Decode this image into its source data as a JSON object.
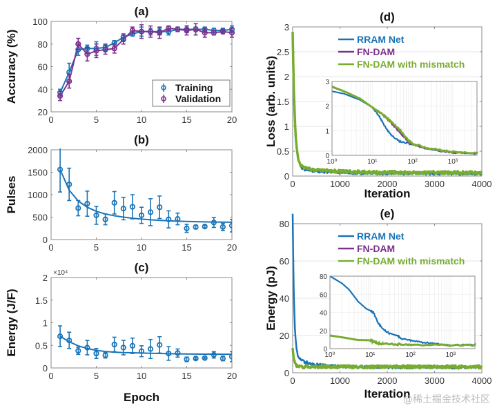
{
  "colors": {
    "blue": "#1a74b8",
    "purple": "#7e2f8e",
    "green": "#77ac30",
    "axis": "#8a8a8a",
    "grid": "#e6e6e6"
  },
  "watermark": "@稀土掘金技术社区",
  "chart_data": [
    {
      "id": "a",
      "type": "line",
      "title": "(a)",
      "xlabel": "",
      "ylabel": "Accuracy (%)",
      "xlim": [
        0,
        20
      ],
      "ylim": [
        20,
        100
      ],
      "xticks": [
        0,
        5,
        10,
        15,
        20
      ],
      "yticks": [
        20,
        40,
        60,
        80,
        100
      ],
      "legend_position": "bottom-right",
      "x": [
        1,
        2,
        3,
        4,
        5,
        6,
        7,
        8,
        9,
        10,
        11,
        12,
        13,
        14,
        15,
        16,
        17,
        18,
        19,
        20
      ],
      "series": [
        {
          "name": "Training",
          "color": "purple_blue",
          "values": [
            37,
            55,
            75,
            76,
            76,
            77,
            81,
            86,
            89,
            91,
            91,
            91,
            91,
            93,
            93,
            93,
            93,
            92,
            92,
            93
          ],
          "err": [
            3,
            8,
            5,
            3,
            6,
            3,
            2,
            3,
            2,
            4,
            3,
            3,
            3,
            2,
            3,
            2,
            2,
            2,
            2,
            3
          ]
        },
        {
          "name": "Validation",
          "values": [
            34,
            47,
            80,
            71,
            74,
            75,
            76,
            84,
            92,
            91,
            91,
            90,
            94,
            93,
            92,
            93,
            90,
            90,
            91,
            90
          ],
          "err": [
            4,
            6,
            5,
            6,
            6,
            4,
            4,
            4,
            3,
            6,
            5,
            5,
            2,
            2,
            4,
            5,
            4,
            2,
            2,
            4
          ]
        }
      ]
    },
    {
      "id": "b",
      "type": "scatter",
      "title": "(b)",
      "xlabel": "",
      "ylabel": "Pulses",
      "xlim": [
        0,
        20
      ],
      "ylim": [
        0,
        2000
      ],
      "xticks": [
        0,
        5,
        10,
        15,
        20
      ],
      "yticks": [
        0,
        500,
        1000,
        1500,
        2000
      ],
      "x": [
        1,
        2,
        3,
        4,
        5,
        6,
        7,
        8,
        9,
        10,
        11,
        12,
        13,
        14,
        15,
        16,
        17,
        18,
        19,
        20
      ],
      "values": [
        1560,
        1230,
        700,
        800,
        540,
        450,
        820,
        690,
        730,
        540,
        610,
        720,
        450,
        460,
        250,
        280,
        290,
        380,
        280,
        310
      ],
      "err": [
        500,
        360,
        170,
        280,
        200,
        120,
        250,
        250,
        270,
        180,
        300,
        250,
        190,
        130,
        90,
        40,
        30,
        110,
        80,
        140
      ],
      "fit": [
        1560,
        1100,
        860,
        720,
        630,
        570,
        530,
        500,
        475,
        455,
        440,
        428,
        418,
        410,
        403,
        398,
        394,
        390,
        388,
        386
      ]
    },
    {
      "id": "c",
      "type": "scatter",
      "title": "(c)",
      "xlabel": "Epoch",
      "ylabel": "Energy (J/F)",
      "exponent_label": "×10⁴",
      "xlim": [
        0,
        20
      ],
      "ylim": [
        0,
        2
      ],
      "xticks": [
        0,
        5,
        10,
        15,
        20
      ],
      "yticks": [
        0,
        0.5,
        1,
        1.5,
        2
      ],
      "ytick_labels": [
        "0",
        "0.5",
        "1",
        "1.5",
        "2"
      ],
      "x": [
        1,
        2,
        3,
        4,
        5,
        6,
        7,
        8,
        9,
        10,
        11,
        12,
        13,
        14,
        15,
        16,
        17,
        18,
        19,
        20
      ],
      "values": [
        0.7,
        0.61,
        0.38,
        0.45,
        0.32,
        0.28,
        0.52,
        0.45,
        0.49,
        0.37,
        0.42,
        0.51,
        0.32,
        0.33,
        0.19,
        0.21,
        0.22,
        0.29,
        0.21,
        0.25
      ],
      "err": [
        0.23,
        0.18,
        0.08,
        0.16,
        0.11,
        0.06,
        0.16,
        0.16,
        0.17,
        0.12,
        0.21,
        0.18,
        0.15,
        0.09,
        0.05,
        0.02,
        0.02,
        0.07,
        0.05,
        0.11
      ],
      "fit": [
        0.7,
        0.58,
        0.49,
        0.43,
        0.39,
        0.365,
        0.35,
        0.34,
        0.335,
        0.33,
        0.325,
        0.32,
        0.315,
        0.312,
        0.31,
        0.308,
        0.306,
        0.305,
        0.304,
        0.303
      ]
    },
    {
      "id": "d",
      "type": "line",
      "title": "(d)",
      "xlabel": "Iteration",
      "ylabel": "Loss (arb. units)",
      "xlim": [
        0,
        4000
      ],
      "ylim": [
        0,
        3
      ],
      "xticks": [
        0,
        1000,
        2000,
        3000,
        4000
      ],
      "yticks": [
        0,
        0.5,
        1,
        1.5,
        2,
        2.5,
        3
      ],
      "legend_position": "top-right",
      "series": [
        {
          "name": "RRAM Net",
          "start": 2.6,
          "floor": 0.05
        },
        {
          "name": "FN-DAM",
          "start": 2.8,
          "floor": 0.06
        },
        {
          "name": "FN-DAM with mismatch",
          "start": 2.8,
          "floor": 0.07
        }
      ],
      "inset": {
        "xscale": "log",
        "xlim": [
          1,
          4000
        ],
        "ylim": [
          0,
          3
        ],
        "yticks": [
          0,
          1,
          2,
          3
        ],
        "xtick_labels": [
          "10⁰",
          "10¹",
          "10²",
          "10³"
        ],
        "series": [
          {
            "name": "RRAM Net",
            "x": [
              1,
              2,
              5,
              10,
              15,
              20,
              30,
              50,
              80,
              100,
              200,
              500,
              1000,
              4000
            ],
            "values": [
              2.6,
              2.5,
              2.25,
              1.95,
              1.6,
              1.2,
              0.8,
              0.55,
              0.5,
              0.45,
              0.3,
              0.18,
              0.12,
              0.08
            ]
          },
          {
            "name": "FN-DAM",
            "x": [
              1,
              2,
              5,
              10,
              20,
              30,
              50,
              80,
              100,
              200,
              500,
              1000,
              4000
            ],
            "values": [
              2.8,
              2.6,
              2.3,
              1.95,
              1.6,
              1.3,
              0.9,
              0.55,
              0.45,
              0.3,
              0.18,
              0.12,
              0.08
            ]
          },
          {
            "name": "FN-DAM with mismatch",
            "x": [
              1,
              2,
              5,
              10,
              20,
              30,
              50,
              80,
              100,
              200,
              500,
              1000,
              4000
            ],
            "values": [
              2.78,
              2.6,
              2.3,
              1.95,
              1.6,
              1.35,
              1.0,
              0.6,
              0.48,
              0.32,
              0.2,
              0.13,
              0.09
            ]
          }
        ]
      }
    },
    {
      "id": "e",
      "type": "line",
      "title": "(e)",
      "xlabel": "Iteration",
      "ylabel": "Energy (pJ)",
      "xlim": [
        0,
        4000
      ],
      "ylim": [
        0,
        80
      ],
      "xticks": [
        0,
        1000,
        2000,
        3000,
        4000
      ],
      "yticks": [
        0,
        20,
        40,
        60,
        80
      ],
      "legend_position": "top-right",
      "series": [
        {
          "name": "RRAM Net",
          "start": 80,
          "floor": 3
        },
        {
          "name": "FN-DAM",
          "start": 14,
          "floor": 3
        },
        {
          "name": "FN-DAM with mismatch",
          "start": 14,
          "floor": 3.2
        }
      ],
      "inset": {
        "xscale": "log",
        "xlim": [
          1,
          4000
        ],
        "ylim": [
          0,
          80
        ],
        "yticks": [
          0,
          20,
          40,
          60,
          80
        ],
        "xtick_labels": [
          "10⁰",
          "10¹",
          "10²",
          "10³"
        ],
        "series": [
          {
            "name": "RRAM Net",
            "x": [
              1,
              2,
              3,
              5,
              8,
              10,
              12,
              15,
              20,
              30,
              50,
              60,
              100,
              200,
              500,
              1000,
              4000
            ],
            "values": [
              80,
              72,
              65,
              52,
              44,
              42,
              40,
              30,
              22,
              17,
              14,
              11,
              9,
              7,
              5,
              4,
              4
            ]
          },
          {
            "name": "FN-DAM",
            "x": [
              1,
              2,
              5,
              10,
              12,
              15,
              20,
              50,
              100,
              1000,
              4000
            ],
            "values": [
              14,
              12,
              9,
              9,
              8,
              6,
              5,
              4.5,
              4,
              3.5,
              3.5
            ]
          },
          {
            "name": "FN-DAM with mismatch",
            "x": [
              1,
              2,
              5,
              10,
              12,
              15,
              20,
              50,
              100,
              1000,
              4000
            ],
            "values": [
              14.5,
              12.5,
              9.5,
              9.2,
              8.2,
              6.2,
              5.2,
              4.8,
              4.2,
              3.8,
              3.8
            ]
          }
        ]
      }
    }
  ]
}
